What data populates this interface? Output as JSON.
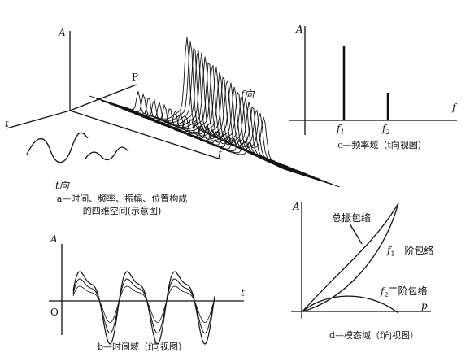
{
  "panel_a": {
    "axis_amplitude": "A",
    "point": "P",
    "axis_time": "t",
    "direction_f": "f向",
    "axis_frequency": "f",
    "direction_t": "t向",
    "caption": [
      "a—时间、频率、振幅、位置构成",
      "的四维空间(示意图)"
    ]
  },
  "panel_b": {
    "axis_amplitude": "A",
    "axis_time": "t",
    "origin": "O",
    "caption": "b—时间域（f向视图）"
  },
  "panel_c": {
    "axis_amplitude": "A",
    "axis_frequency": "f",
    "peak_1": {
      "base": "f",
      "sub": "1"
    },
    "peak_2": {
      "base": "f",
      "sub": "2"
    },
    "caption": "c—频率域（t向视图）"
  },
  "panel_d": {
    "axis_amplitude": "A",
    "axis_p": "p",
    "total_envelope": "总振包络",
    "first_order": {
      "base": "f",
      "sub": "1",
      "text": "一阶包络"
    },
    "second_order": {
      "base": "f",
      "sub": "2",
      "text": "二阶包络"
    },
    "caption": "d—模态域（f向视图）"
  }
}
